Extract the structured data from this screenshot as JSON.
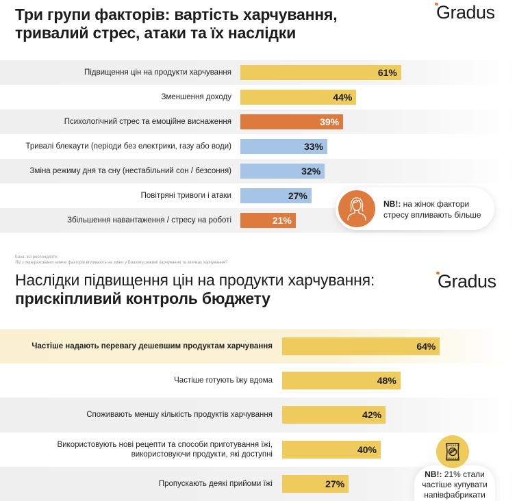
{
  "section1": {
    "title": "Три групи факторів: вартість харчування, тривалий стрес, атаки та їх наслідки",
    "logo": "Gradus",
    "note": {
      "bold": "NB!:",
      "text": " на жінок фактори стресу впливають більше",
      "icon": "woman-icon"
    },
    "footnote": {
      "base": "База: всі респонденти",
      "question": "Які з перерахованих нижче факторів впливають на зміни у Вашому режимі харчування та звичках харчування?"
    }
  },
  "section2": {
    "title_regular": "Наслідки підвищення цін на продукти харчування:",
    "title_bold": "прискіпливий контроль бюджету",
    "logo": "Gradus",
    "note": {
      "bold": "NB!:",
      "text": " 21% стали частіше купувати напівфабрикати",
      "icon": "snack-package-icon"
    }
  },
  "colors": {
    "yellow": "#efcb5d",
    "orange": "#df7a3e",
    "blue": "#a6c4e6",
    "highlight": "#fbf1d2"
  },
  "chart_data": [
    {
      "type": "bar",
      "orientation": "horizontal",
      "title": "Три групи факторів: вартість харчування, тривалий стрес, атаки та їх наслідки",
      "xlim": [
        0,
        100
      ],
      "unit": "%",
      "categories": [
        "Підвищення цін на продукти харчування",
        "Зменшення доходу",
        "Психологічний стрес та емоційне виснаження",
        "Тривалі блекаути (періоди без електрики, газу або води)",
        "Зміна режиму дня та сну (нестабільний сон / безсоння)",
        "Повітряні тривоги і атаки",
        "Збільшення навантаження / стресу на роботі"
      ],
      "values": [
        61,
        44,
        39,
        33,
        32,
        27,
        21
      ],
      "labels": [
        "61%",
        "44%",
        "39%",
        "33%",
        "32%",
        "27%",
        "21%"
      ],
      "bar_colors": [
        "yellow",
        "yellow",
        "orange",
        "blue",
        "blue",
        "blue",
        "orange"
      ],
      "row_backgrounds": [
        "gray",
        "white",
        "gray",
        "white",
        "gray",
        "white",
        "gray"
      ],
      "bold_labels": [
        false,
        false,
        false,
        false,
        false,
        false,
        false
      ]
    },
    {
      "type": "bar",
      "orientation": "horizontal",
      "title": "Наслідки підвищення цін на продукти харчування: прискіпливий контроль бюджету",
      "xlim": [
        0,
        100
      ],
      "unit": "%",
      "categories": [
        "Частіше надають перевагу дешевшим продуктам харчування",
        "Частіше готують їжу вдома",
        "Споживають меншу кількість продуктів харчування",
        "Використовують нові рецепти та способи приготування їжі,\nвикористовуючи продукти, які доступні",
        "Пропускають деякі прийоми їжі"
      ],
      "values": [
        64,
        48,
        42,
        40,
        27
      ],
      "labels": [
        "64%",
        "48%",
        "42%",
        "40%",
        "27%"
      ],
      "bar_colors": [
        "yellow",
        "yellow",
        "yellow",
        "yellow",
        "yellow"
      ],
      "row_backgrounds": [
        "cream",
        "white",
        "gray",
        "white",
        "gray"
      ],
      "bold_labels": [
        true,
        false,
        false,
        false,
        false
      ]
    }
  ]
}
